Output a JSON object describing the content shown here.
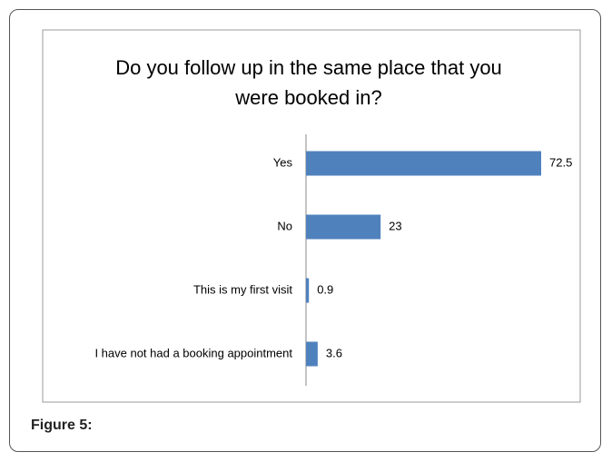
{
  "chart_data": {
    "type": "bar",
    "orientation": "horizontal",
    "title": "Do you follow up in the same place that you were booked in?",
    "categories": [
      "Yes",
      "No",
      "This is my first visit",
      "I have not had a booking appointment"
    ],
    "values": [
      72.5,
      23,
      0.9,
      3.6
    ],
    "color": "#4f81bd"
  },
  "caption": "Figure 5:"
}
